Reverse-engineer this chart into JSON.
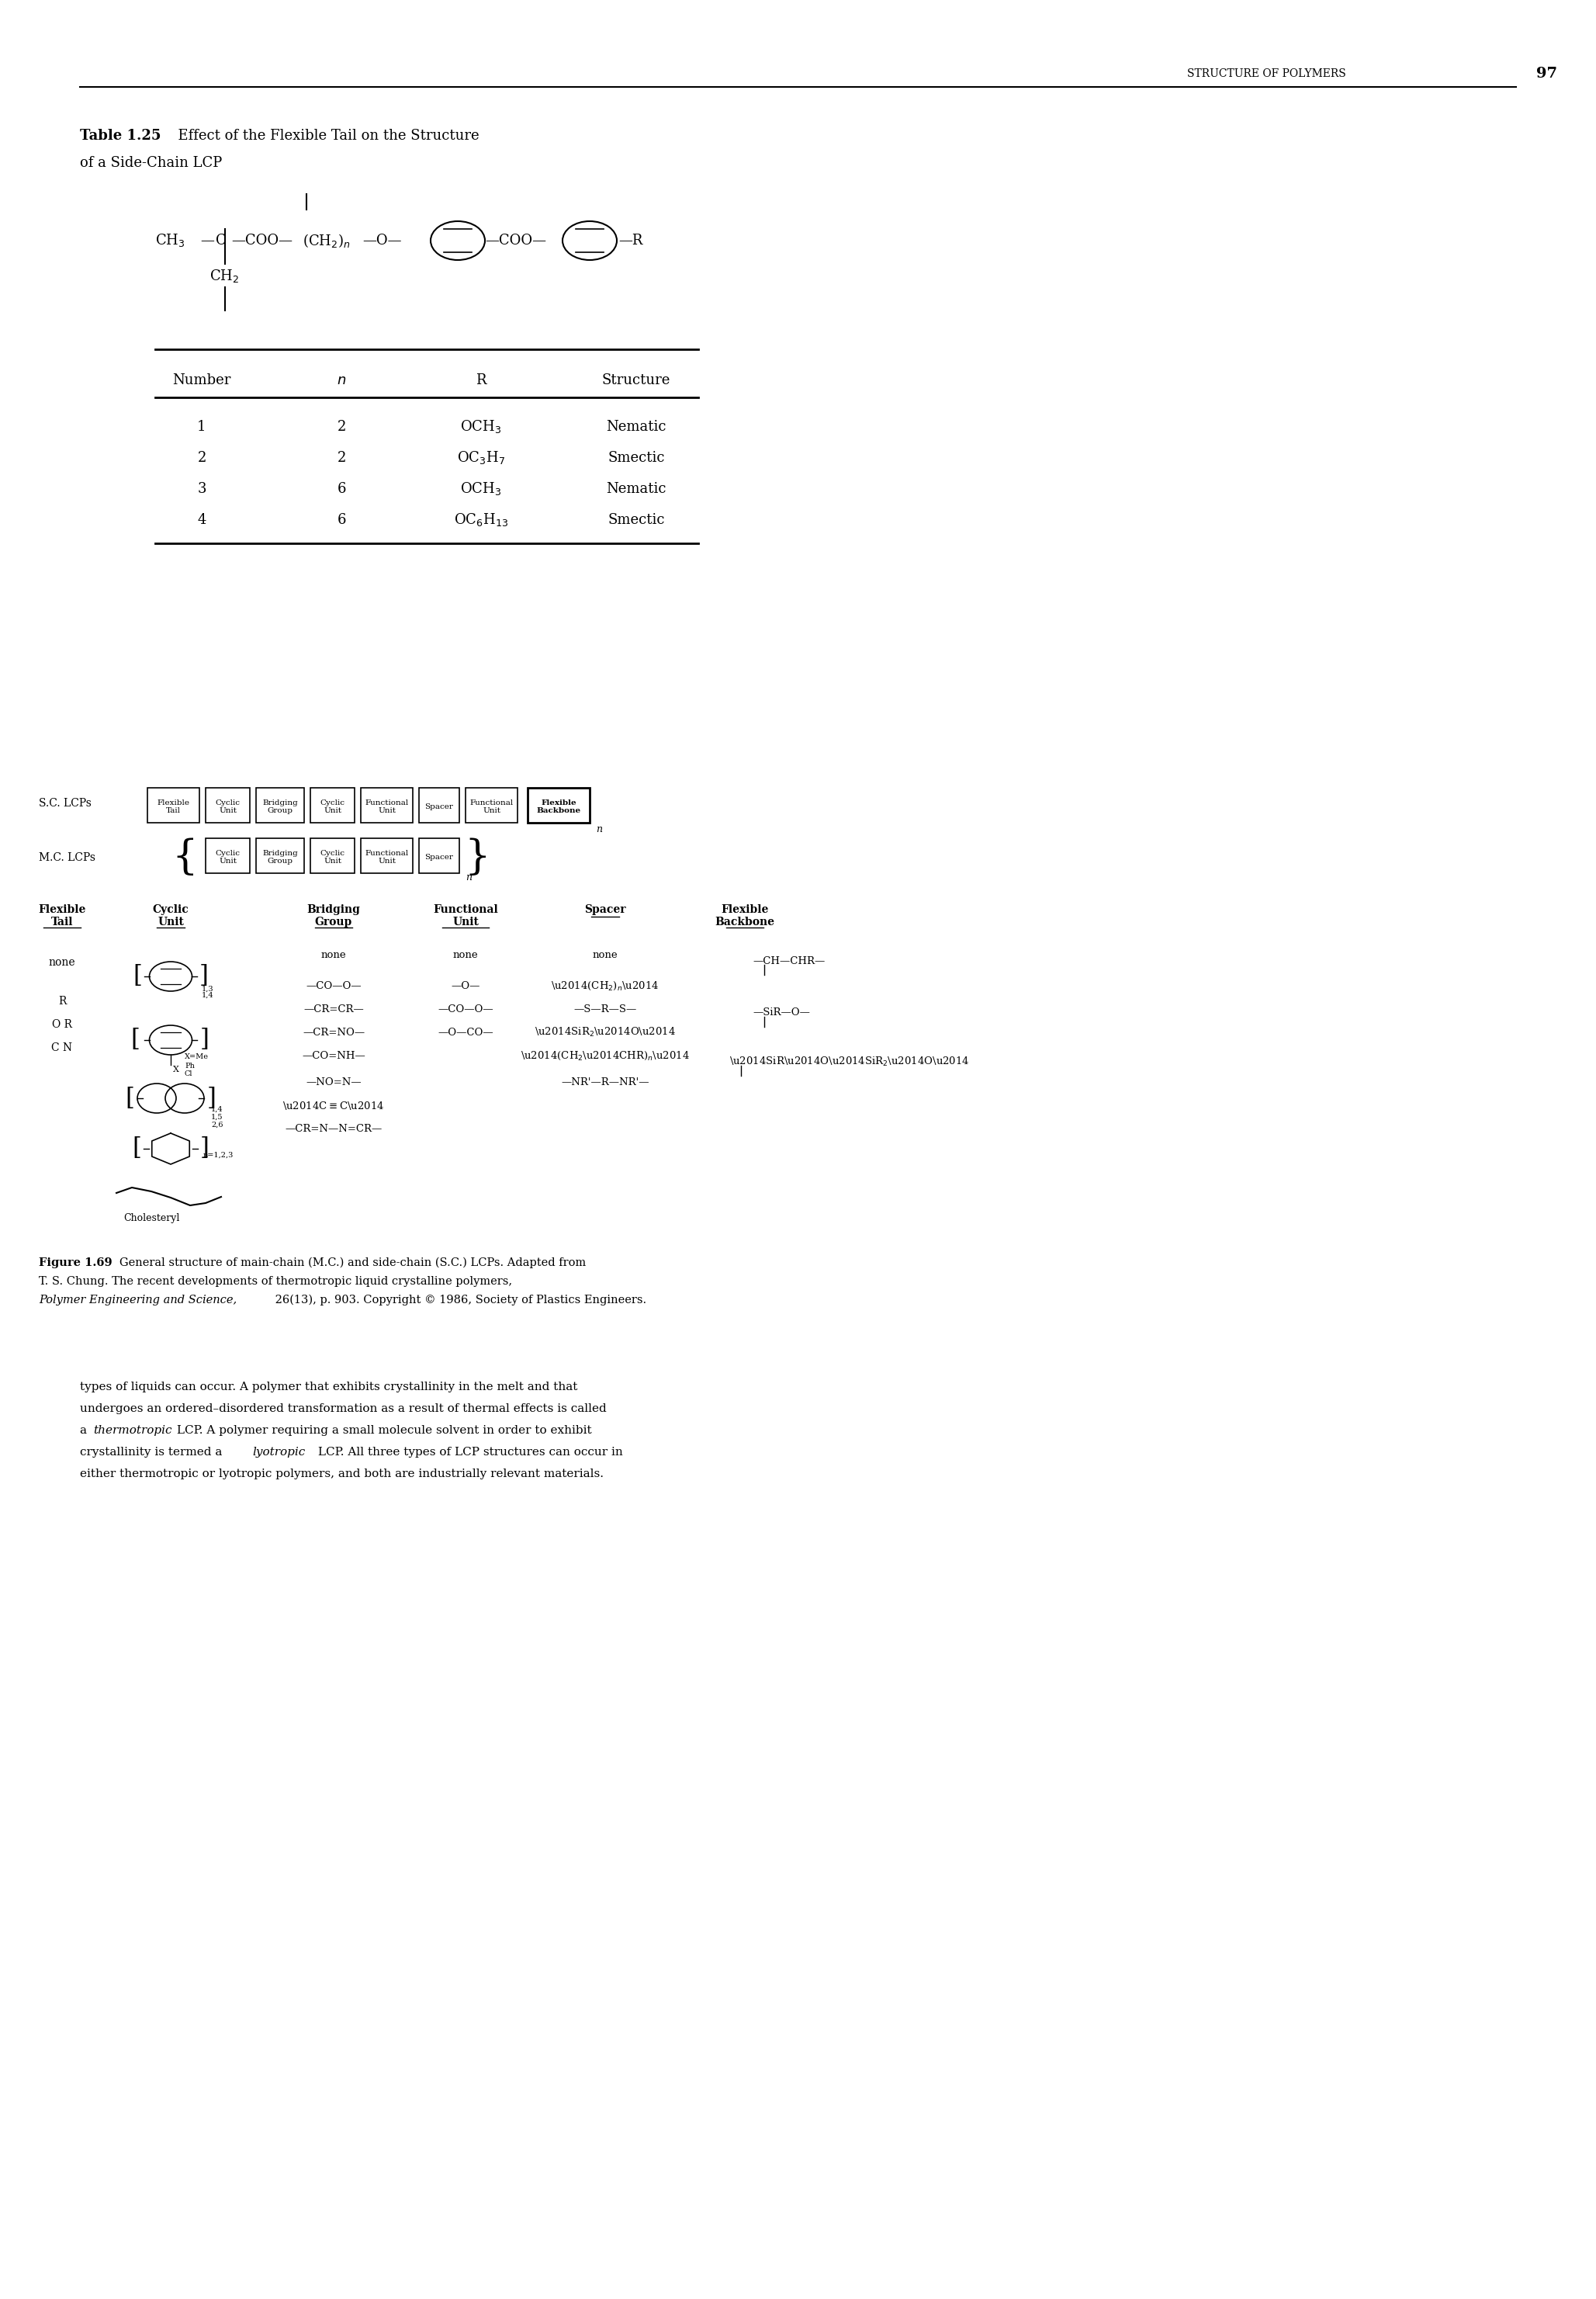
{
  "page_header_text": "STRUCTURE OF POLYMERS",
  "page_number": "97",
  "table_title_bold": "Table 1.25",
  "table_title_rest": "  Effect of the Flexible Tail on the Structure",
  "table_title_line2": "of a Side-Chain LCP",
  "table_headers": [
    "Number",
    "n",
    "R",
    "Structure"
  ],
  "table_rows": [
    [
      "1",
      "2",
      "OCH$_3$",
      "Nematic"
    ],
    [
      "2",
      "2",
      "OC$_3$H$_7$",
      "Smectic"
    ],
    [
      "3",
      "6",
      "OCH$_3$",
      "Nematic"
    ],
    [
      "4",
      "6",
      "OC$_6$H$_{13}$",
      "Smectic"
    ]
  ],
  "figure_caption_bold": "Figure 1.69",
  "bg_color": "#ffffff",
  "text_color": "#000000"
}
